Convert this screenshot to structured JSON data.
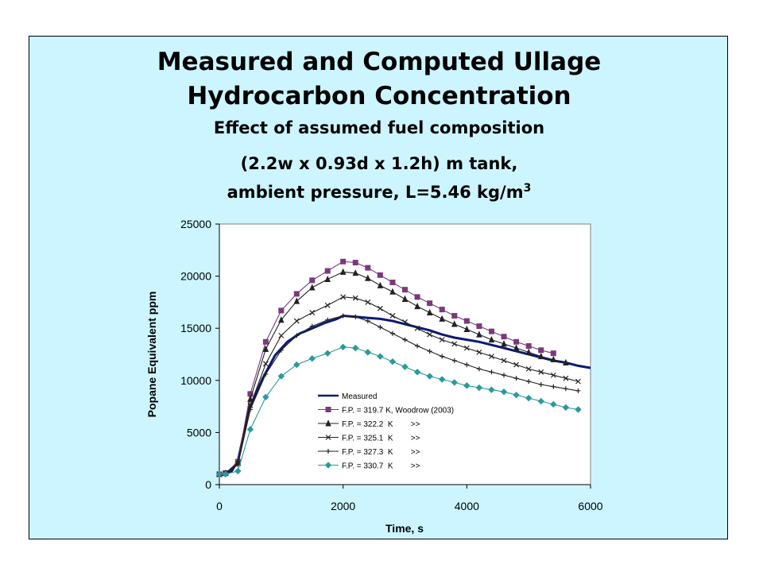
{
  "slide": {
    "title_line1": "Measured and Computed Ullage",
    "title_line2": "Hydrocarbon Concentration",
    "subtitle": "Effect of assumed  fuel composition",
    "tank_spec": "(2.2w x 0.93d x 1.2h) m tank,",
    "ambient_prefix": "ambient pressure, L=5.46 kg/m",
    "ambient_superscript": "3"
  },
  "colors": {
    "background_panel": "#ccf5ff",
    "plot_area": "#ffffff",
    "measured": "#0b1a73",
    "fp_319_7": "#7a3a7a",
    "fp_322_2": "#222222",
    "fp_325_1": "#222222",
    "fp_327_3": "#222222",
    "fp_330_7": "#2a9a9a"
  },
  "chart_data": {
    "type": "line",
    "xlabel": "Time, s",
    "ylabel": "Popane Equivalent ppm",
    "xlim": [
      0,
      6000
    ],
    "ylim": [
      0,
      25000
    ],
    "x_ticks": [
      0,
      2000,
      4000,
      6000
    ],
    "y_ticks": [
      0,
      5000,
      10000,
      15000,
      20000,
      25000
    ],
    "x_tick_labels": [
      "0",
      "2000",
      "4000",
      "6000"
    ],
    "y_tick_labels": [
      "0",
      "5000",
      "10000",
      "15000",
      "20000",
      "25000"
    ],
    "grid": false,
    "legend_position": "bottom-center",
    "series": [
      {
        "name": "Measured",
        "marker": "none",
        "color": "#0b1a73",
        "x": [
          0,
          100,
          200,
          300,
          400,
          500,
          700,
          900,
          1100,
          1300,
          1500,
          1700,
          1900,
          2000,
          2200,
          2400,
          2600,
          2800,
          3000,
          3200,
          3400,
          3600,
          3800,
          4000,
          4200,
          4400,
          4600,
          4800,
          5000,
          5200,
          5400,
          5600,
          5800,
          6000
        ],
        "y": [
          900,
          1000,
          1300,
          2300,
          5000,
          7500,
          10200,
          12400,
          13700,
          14500,
          15000,
          15500,
          15900,
          16200,
          16100,
          16000,
          15900,
          15700,
          15400,
          15100,
          14800,
          14400,
          14100,
          13900,
          13700,
          13400,
          13100,
          12800,
          12500,
          12200,
          11900,
          11700,
          11400,
          11200
        ]
      },
      {
        "name": "F.P. = 319.7 K, Woodrow (2003)",
        "marker": "square",
        "color": "#7a3a7a",
        "x": [
          0,
          100,
          300,
          500,
          750,
          1000,
          1250,
          1500,
          1750,
          2000,
          2200,
          2400,
          2600,
          2800,
          3000,
          3200,
          3400,
          3600,
          3800,
          4000,
          4200,
          4400,
          4600,
          4800,
          5000,
          5200,
          5400
        ],
        "y": [
          1000,
          1100,
          2200,
          8700,
          13700,
          16700,
          18300,
          19600,
          20500,
          21400,
          21300,
          20800,
          20100,
          19400,
          18700,
          18000,
          17400,
          16800,
          16200,
          15700,
          15200,
          14700,
          14200,
          13700,
          13300,
          12900,
          12600
        ]
      },
      {
        "name": "F.P. = 322.2  K        >>",
        "marker": "triangle",
        "color": "#222222",
        "x": [
          0,
          100,
          300,
          500,
          750,
          1000,
          1250,
          1500,
          1750,
          2000,
          2200,
          2400,
          2600,
          2800,
          3000,
          3200,
          3400,
          3600,
          3800,
          4000,
          4200,
          4400,
          4600,
          4800,
          5000,
          5200,
          5400,
          5600
        ],
        "y": [
          1000,
          1100,
          2100,
          8200,
          13000,
          15800,
          17600,
          18900,
          19700,
          20400,
          20300,
          19800,
          19100,
          18500,
          17800,
          17100,
          16500,
          15900,
          15400,
          14900,
          14400,
          13900,
          13500,
          13100,
          12700,
          12300,
          12000,
          11700
        ]
      },
      {
        "name": "F.P. = 325.1  K        >>",
        "marker": "x",
        "color": "#222222",
        "x": [
          0,
          100,
          300,
          500,
          750,
          1000,
          1250,
          1500,
          1750,
          2000,
          2200,
          2400,
          2600,
          2800,
          3000,
          3200,
          3400,
          3600,
          3800,
          4000,
          4200,
          4400,
          4600,
          4800,
          5000,
          5200,
          5400,
          5600,
          5800
        ],
        "y": [
          1000,
          1100,
          2000,
          7600,
          11600,
          14300,
          15700,
          16500,
          17200,
          18000,
          17900,
          17500,
          16900,
          16200,
          15600,
          15000,
          14400,
          13900,
          13500,
          13100,
          12700,
          12300,
          11900,
          11500,
          11100,
          10800,
          10500,
          10200,
          9900
        ]
      },
      {
        "name": "F.P. = 327.3  K        >>",
        "marker": "plus",
        "color": "#222222",
        "x": [
          0,
          100,
          300,
          500,
          750,
          1000,
          1250,
          1500,
          1750,
          2000,
          2200,
          2400,
          2600,
          2800,
          3000,
          3200,
          3400,
          3600,
          3800,
          4000,
          4200,
          4400,
          4600,
          4800,
          5000,
          5200,
          5400,
          5600,
          5800
        ],
        "y": [
          1000,
          1100,
          1900,
          7200,
          10600,
          12900,
          14300,
          15200,
          15800,
          16200,
          16100,
          15700,
          15100,
          14500,
          13900,
          13300,
          12800,
          12300,
          11900,
          11500,
          11100,
          10800,
          10500,
          10200,
          9900,
          9600,
          9400,
          9200,
          9000
        ]
      },
      {
        "name": "F.P. = 330.7  K        >>",
        "marker": "diamond",
        "color": "#2a9a9a",
        "x": [
          0,
          100,
          300,
          500,
          750,
          1000,
          1250,
          1500,
          1750,
          2000,
          2200,
          2400,
          2600,
          2800,
          3000,
          3200,
          3400,
          3600,
          3800,
          4000,
          4200,
          4400,
          4600,
          4800,
          5000,
          5200,
          5400,
          5600,
          5800
        ],
        "y": [
          1000,
          1000,
          1300,
          5300,
          8400,
          10400,
          11500,
          12100,
          12600,
          13200,
          13100,
          12700,
          12300,
          11800,
          11300,
          10800,
          10400,
          10100,
          9800,
          9500,
          9300,
          9100,
          8900,
          8600,
          8300,
          8000,
          7700,
          7400,
          7200
        ]
      }
    ]
  }
}
